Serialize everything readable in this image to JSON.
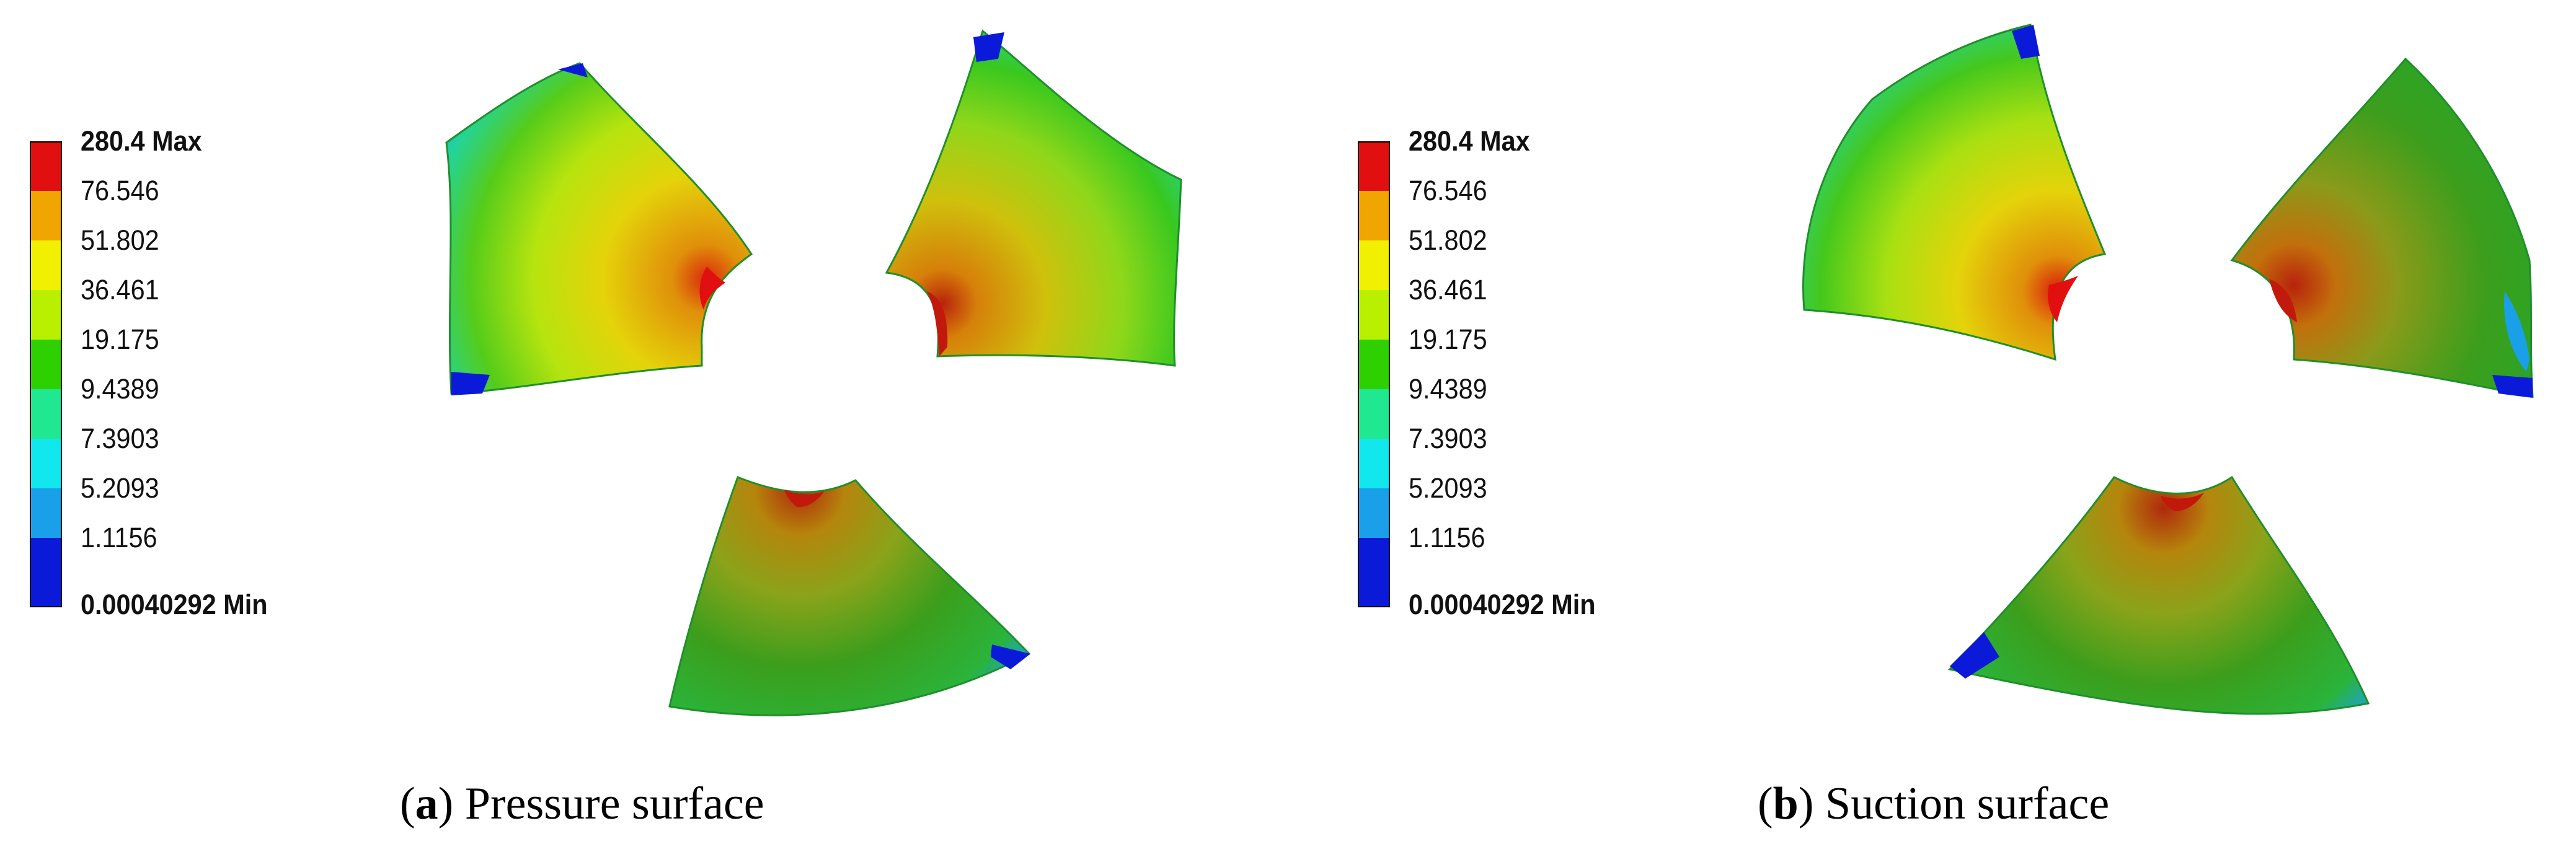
{
  "colors": {
    "red": "#e10f0f",
    "orange": "#f0a500",
    "yellow": "#f0f000",
    "yellowgreen": "#b8f000",
    "green": "#2fd000",
    "darkgreen": "#1faa1a",
    "teal": "#20e890",
    "cyan": "#10e8ee",
    "skyblue": "#1aa0e8",
    "blue": "#0a1ad8"
  },
  "legend": {
    "max_label": "280.4 Max",
    "levels": [
      "76.546",
      "51.802",
      "36.461",
      "19.175",
      "9.4389",
      "7.3903",
      "5.2093",
      "1.1156"
    ],
    "min_label": "0.00040292 Min"
  },
  "panels": [
    {
      "letter": "a",
      "caption": "Pressure surface"
    },
    {
      "letter": "b",
      "caption": "Suction surface"
    }
  ]
}
